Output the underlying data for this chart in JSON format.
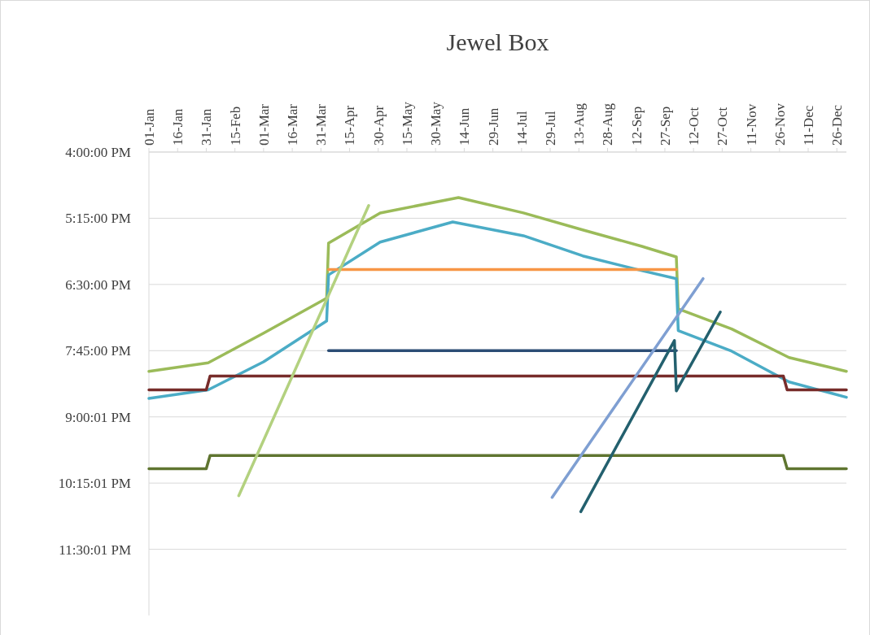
{
  "chart_data": {
    "type": "line",
    "title": "Jewel Box",
    "xlim": [
      "--01-01",
      "--12-31"
    ],
    "xticks": [
      {
        "value": "--01-01",
        "label": "01-Jan"
      },
      {
        "value": "--01-16",
        "label": "16-Jan"
      },
      {
        "value": "--01-31",
        "label": "31-Jan"
      },
      {
        "value": "--02-15",
        "label": "15-Feb"
      },
      {
        "value": "--03-01",
        "label": "01-Mar"
      },
      {
        "value": "--03-16",
        "label": "16-Mar"
      },
      {
        "value": "--03-31",
        "label": "31-Mar"
      },
      {
        "value": "--04-15",
        "label": "15-Apr"
      },
      {
        "value": "--04-30",
        "label": "30-Apr"
      },
      {
        "value": "--05-15",
        "label": "15-May"
      },
      {
        "value": "--05-30",
        "label": "30-May"
      },
      {
        "value": "--06-14",
        "label": "14-Jun"
      },
      {
        "value": "--06-29",
        "label": "29-Jun"
      },
      {
        "value": "--07-14",
        "label": "14-Jul"
      },
      {
        "value": "--07-29",
        "label": "29-Jul"
      },
      {
        "value": "--08-13",
        "label": "13-Aug"
      },
      {
        "value": "--08-28",
        "label": "28-Aug"
      },
      {
        "value": "--09-12",
        "label": "12-Sep"
      },
      {
        "value": "--09-27",
        "label": "27-Sep"
      },
      {
        "value": "--10-12",
        "label": "12-Oct"
      },
      {
        "value": "--10-27",
        "label": "27-Oct"
      },
      {
        "value": "--11-11",
        "label": "11-Nov"
      },
      {
        "value": "--11-26",
        "label": "26-Nov"
      },
      {
        "value": "--12-11",
        "label": "11-Dec"
      },
      {
        "value": "--12-26",
        "label": "26-Dec"
      }
    ],
    "ylim": [
      24.75,
      16
    ],
    "yticks": [
      {
        "value": 16,
        "label": "4:00:00 PM"
      },
      {
        "value": 17.25,
        "label": "5:15:00 PM"
      },
      {
        "value": 18.5,
        "label": "6:30:00 PM"
      },
      {
        "value": 19.75,
        "label": "7:45:00 PM"
      },
      {
        "value": 21.000278,
        "label": "9:00:01 PM"
      },
      {
        "value": 22.250278,
        "label": "10:15:01 PM"
      },
      {
        "value": 23.500278,
        "label": "11:30:01 PM"
      }
    ],
    "grid": "y",
    "marker": "none",
    "line_style": "solid",
    "series": [
      {
        "color": "#9bbb59",
        "x": [
          "--01-01",
          "--02-01",
          "--03-01",
          "--04-03",
          "--04-04",
          "--05-01",
          "--06-11",
          "--07-15",
          "--08-15",
          "--09-15",
          "--10-03",
          "--10-04",
          "--11-01",
          "--12-01",
          "--12-31"
        ],
        "values": [
          20.14,
          19.98,
          19.42,
          18.76,
          17.72,
          17.15,
          16.86,
          17.15,
          17.47,
          17.78,
          17.98,
          18.96,
          19.34,
          19.88,
          20.14
        ]
      },
      {
        "color": "#4bacc6",
        "x": [
          "--01-01",
          "--02-01",
          "--03-01",
          "--04-03",
          "--04-04",
          "--05-01",
          "--06-08",
          "--07-15",
          "--08-15",
          "--09-15",
          "--10-03",
          "--10-04",
          "--11-01",
          "--12-01",
          "--12-31"
        ],
        "values": [
          20.65,
          20.49,
          19.96,
          19.19,
          18.32,
          17.7,
          17.32,
          17.58,
          17.96,
          18.24,
          18.39,
          19.37,
          19.76,
          20.34,
          20.63
        ]
      },
      {
        "color": "#f79646",
        "x": [
          "--04-04",
          "--10-03"
        ],
        "values": [
          18.22,
          18.22
        ]
      },
      {
        "color": "#2c4d75",
        "x": [
          "--04-04",
          "--10-03"
        ],
        "values": [
          19.75,
          19.75
        ]
      },
      {
        "color": "#772c2a",
        "x": [
          "--01-01",
          "--01-31",
          "--02-02",
          "--11-28",
          "--11-30",
          "--12-31"
        ],
        "values": [
          20.49,
          20.49,
          20.23,
          20.23,
          20.49,
          20.49
        ]
      },
      {
        "color": "#5f7530",
        "x": [
          "--01-01",
          "--01-31",
          "--02-02",
          "--11-28",
          "--11-30",
          "--12-31"
        ],
        "values": [
          21.98,
          21.98,
          21.73,
          21.73,
          21.98,
          21.98
        ]
      },
      {
        "color": "#b3d17f",
        "x": [
          "--02-17",
          "--04-25"
        ],
        "values": [
          22.49,
          17.01
        ]
      },
      {
        "color": "#7f9fd2",
        "x": [
          "--07-30",
          "--10-17"
        ],
        "values": [
          22.52,
          18.39
        ]
      },
      {
        "color": "#23606e",
        "x": [
          "--08-14",
          "--10-02",
          "--10-03",
          "--10-26"
        ],
        "values": [
          22.79,
          19.56,
          20.51,
          19.02
        ]
      }
    ]
  }
}
